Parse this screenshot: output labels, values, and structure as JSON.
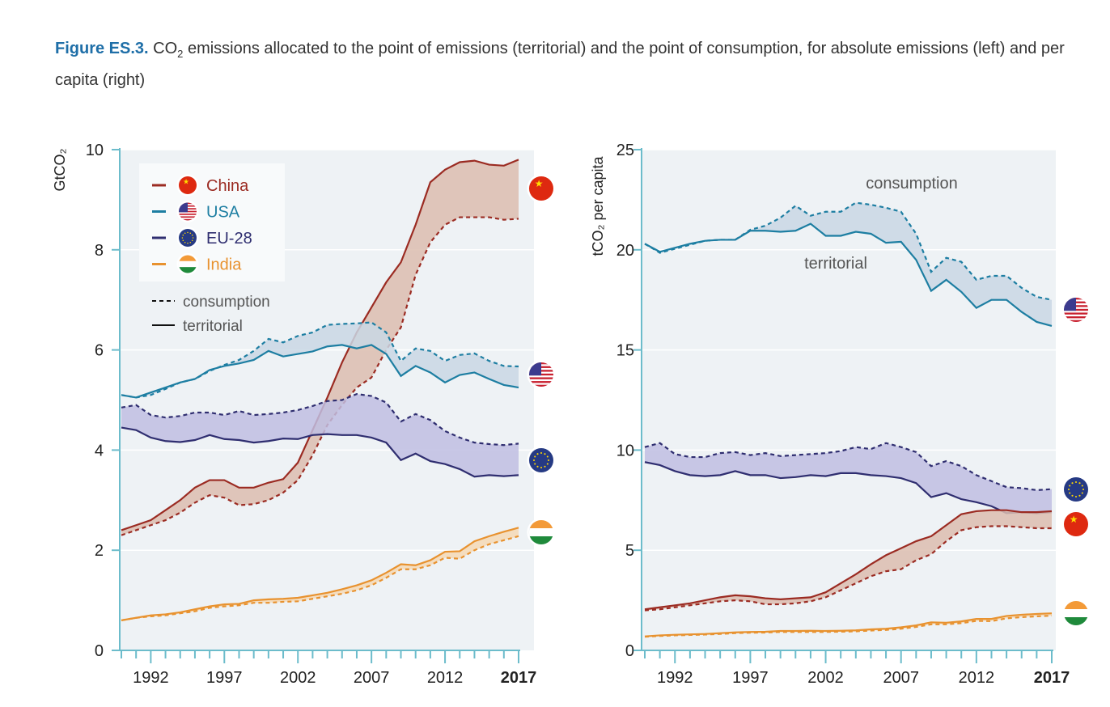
{
  "title": {
    "figure": "Figure ES.3.",
    "pre": "CO",
    "sub": "2",
    "text": " emissions allocated to the point of emissions (territorial) and the point of consumption, for absolute emissions (left) and per capita (right)"
  },
  "colors": {
    "China": "#9b2b22",
    "USA": "#1d7ea2",
    "EU-28": "#2f2e70",
    "India": "#e8922f",
    "plot_bg": "#eef2f5",
    "axis": "#6cbccb",
    "band_China": "#dcbdaf",
    "band_USA": "#c9d7e4",
    "band_EU-28": "#c0bee2",
    "band_India": "#f5d9b5"
  },
  "legend": {
    "items": [
      {
        "label": "China",
        "flag": "china-flag-icon"
      },
      {
        "label": "USA",
        "flag": "usa-flag-icon"
      },
      {
        "label": "EU-28",
        "flag": "eu-flag-icon"
      },
      {
        "label": "India",
        "flag": "india-flag-icon"
      }
    ],
    "styles": [
      {
        "label": "consumption",
        "dash": true
      },
      {
        "label": "territorial",
        "dash": false
      }
    ]
  },
  "chart_data": [
    {
      "type": "line",
      "ylabel": "GtCO₂",
      "ylim": [
        0,
        10
      ],
      "yticks": [
        "0",
        "2",
        "4",
        "6",
        "8",
        "10"
      ],
      "xlim": [
        1990,
        2017
      ],
      "xtick_labels": [
        "1992",
        "1997",
        "2002",
        "2007",
        "2012",
        "2017"
      ],
      "grid": true,
      "legend_placement": "top-left",
      "x_start": 1990,
      "series": [
        {
          "name": "China",
          "territorial": [
            2.4,
            2.5,
            2.6,
            2.8,
            3.0,
            3.25,
            3.4,
            3.4,
            3.25,
            3.25,
            3.35,
            3.42,
            3.75,
            4.4,
            5.05,
            5.75,
            6.35,
            6.85,
            7.35,
            7.75,
            8.5,
            9.35,
            9.6,
            9.75,
            9.78,
            9.7,
            9.68,
            9.8
          ],
          "consumption": [
            2.3,
            2.4,
            2.5,
            2.6,
            2.75,
            2.95,
            3.1,
            3.05,
            2.9,
            2.92,
            3.0,
            3.15,
            3.4,
            3.9,
            4.5,
            4.9,
            5.25,
            5.45,
            6.0,
            6.45,
            7.5,
            8.15,
            8.5,
            8.65,
            8.65,
            8.65,
            8.6,
            8.62
          ]
        },
        {
          "name": "USA",
          "territorial": [
            5.1,
            5.05,
            5.15,
            5.25,
            5.35,
            5.42,
            5.6,
            5.68,
            5.73,
            5.8,
            5.98,
            5.87,
            5.92,
            5.97,
            6.07,
            6.1,
            6.03,
            6.1,
            5.92,
            5.48,
            5.68,
            5.55,
            5.35,
            5.5,
            5.55,
            5.42,
            5.3,
            5.25
          ],
          "consumption": [
            5.1,
            5.05,
            5.1,
            5.22,
            5.35,
            5.42,
            5.58,
            5.7,
            5.8,
            5.98,
            6.22,
            6.15,
            6.28,
            6.35,
            6.5,
            6.52,
            6.53,
            6.55,
            6.35,
            5.78,
            6.03,
            5.98,
            5.78,
            5.9,
            5.93,
            5.78,
            5.68,
            5.67
          ]
        },
        {
          "name": "EU-28",
          "territorial": [
            4.45,
            4.4,
            4.25,
            4.18,
            4.16,
            4.2,
            4.3,
            4.22,
            4.2,
            4.15,
            4.18,
            4.23,
            4.22,
            4.3,
            4.32,
            4.3,
            4.3,
            4.25,
            4.15,
            3.8,
            3.93,
            3.78,
            3.72,
            3.62,
            3.47,
            3.5,
            3.48,
            3.5
          ],
          "consumption": [
            4.85,
            4.9,
            4.7,
            4.65,
            4.68,
            4.75,
            4.75,
            4.7,
            4.78,
            4.7,
            4.72,
            4.75,
            4.8,
            4.88,
            4.98,
            5.0,
            5.12,
            5.08,
            4.95,
            4.57,
            4.72,
            4.6,
            4.38,
            4.25,
            4.15,
            4.12,
            4.1,
            4.13
          ]
        },
        {
          "name": "India",
          "territorial": [
            0.6,
            0.65,
            0.7,
            0.72,
            0.76,
            0.82,
            0.88,
            0.92,
            0.93,
            1.0,
            1.02,
            1.03,
            1.05,
            1.1,
            1.15,
            1.22,
            1.3,
            1.4,
            1.55,
            1.72,
            1.7,
            1.8,
            1.97,
            1.98,
            2.18,
            2.28,
            2.37,
            2.45
          ],
          "consumption": [
            0.6,
            0.65,
            0.68,
            0.7,
            0.74,
            0.78,
            0.85,
            0.88,
            0.9,
            0.95,
            0.95,
            0.97,
            0.98,
            1.03,
            1.08,
            1.13,
            1.2,
            1.3,
            1.45,
            1.62,
            1.62,
            1.7,
            1.85,
            1.83,
            2.0,
            2.12,
            2.2,
            2.28
          ]
        }
      ]
    },
    {
      "type": "line",
      "ylabel": "tCO₂ per capita",
      "ylim": [
        0,
        25
      ],
      "yticks": [
        "0",
        "5",
        "10",
        "15",
        "20",
        "25"
      ],
      "xlim": [
        1990,
        2017
      ],
      "xtick_labels": [
        "1992",
        "1997",
        "2002",
        "2007",
        "2012",
        "2017"
      ],
      "grid": true,
      "annotations": [
        "consumption",
        "territorial"
      ],
      "x_start": 1990,
      "series": [
        {
          "name": "USA",
          "territorial": [
            20.3,
            19.9,
            20.1,
            20.3,
            20.45,
            20.5,
            20.5,
            20.95,
            20.95,
            20.9,
            20.95,
            21.3,
            20.7,
            20.7,
            20.9,
            20.8,
            20.35,
            20.4,
            19.5,
            17.95,
            18.5,
            17.9,
            17.1,
            17.5,
            17.5,
            16.9,
            16.4,
            16.2
          ],
          "consumption": [
            20.3,
            19.85,
            20.05,
            20.25,
            20.45,
            20.5,
            20.5,
            21.0,
            21.2,
            21.6,
            22.2,
            21.7,
            21.9,
            21.9,
            22.35,
            22.25,
            22.1,
            21.9,
            20.8,
            18.9,
            19.6,
            19.4,
            18.5,
            18.7,
            18.7,
            18.1,
            17.65,
            17.5
          ]
        },
        {
          "name": "EU-28",
          "territorial": [
            9.4,
            9.25,
            8.95,
            8.75,
            8.7,
            8.75,
            8.95,
            8.75,
            8.75,
            8.6,
            8.65,
            8.75,
            8.7,
            8.85,
            8.85,
            8.75,
            8.7,
            8.6,
            8.35,
            7.65,
            7.85,
            7.55,
            7.4,
            7.2,
            6.85,
            6.9,
            6.85,
            6.9
          ],
          "consumption": [
            10.15,
            10.35,
            9.8,
            9.65,
            9.65,
            9.85,
            9.9,
            9.75,
            9.85,
            9.7,
            9.75,
            9.8,
            9.85,
            9.95,
            10.15,
            10.05,
            10.35,
            10.15,
            9.9,
            9.2,
            9.45,
            9.2,
            8.75,
            8.45,
            8.15,
            8.1,
            8.0,
            8.05
          ]
        },
        {
          "name": "China",
          "territorial": [
            2.05,
            2.15,
            2.25,
            2.35,
            2.5,
            2.65,
            2.75,
            2.7,
            2.6,
            2.55,
            2.6,
            2.65,
            2.9,
            3.35,
            3.8,
            4.3,
            4.75,
            5.1,
            5.45,
            5.7,
            6.25,
            6.8,
            6.95,
            7.0,
            7.0,
            6.9,
            6.9,
            6.95
          ],
          "consumption": [
            2.0,
            2.05,
            2.15,
            2.25,
            2.35,
            2.45,
            2.5,
            2.45,
            2.3,
            2.3,
            2.35,
            2.45,
            2.65,
            3.0,
            3.35,
            3.7,
            3.95,
            4.05,
            4.5,
            4.8,
            5.45,
            6.0,
            6.15,
            6.2,
            6.2,
            6.15,
            6.1,
            6.1
          ]
        },
        {
          "name": "India",
          "territorial": [
            0.7,
            0.75,
            0.78,
            0.8,
            0.82,
            0.86,
            0.9,
            0.92,
            0.93,
            0.97,
            0.97,
            0.98,
            0.97,
            0.98,
            1.0,
            1.05,
            1.08,
            1.15,
            1.25,
            1.4,
            1.38,
            1.45,
            1.57,
            1.57,
            1.72,
            1.78,
            1.82,
            1.85
          ],
          "consumption": [
            0.68,
            0.72,
            0.75,
            0.77,
            0.79,
            0.82,
            0.86,
            0.88,
            0.89,
            0.92,
            0.92,
            0.92,
            0.92,
            0.93,
            0.95,
            0.99,
            1.02,
            1.08,
            1.17,
            1.3,
            1.3,
            1.36,
            1.47,
            1.46,
            1.6,
            1.66,
            1.7,
            1.73
          ]
        }
      ]
    }
  ]
}
